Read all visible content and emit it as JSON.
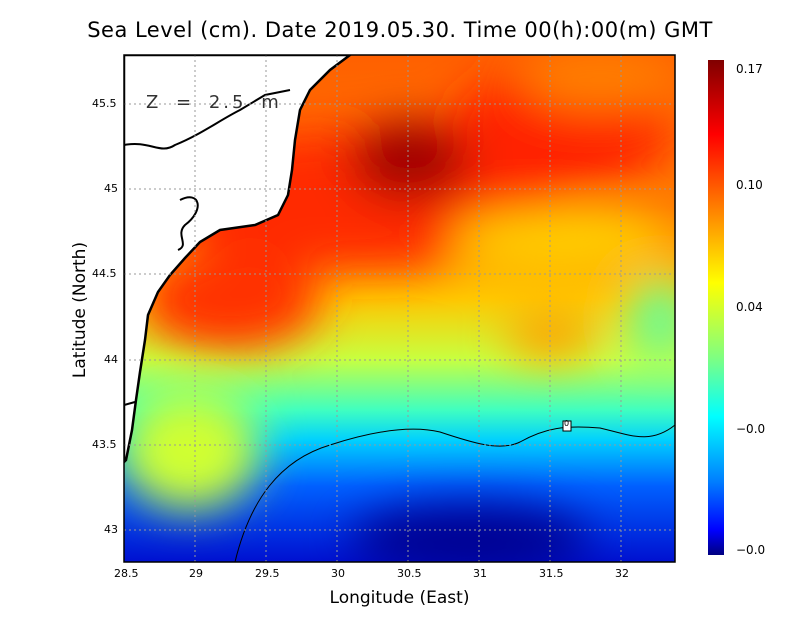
{
  "title": "Sea Level (cm). Date 2019.05.30. Time 00(h):00(m) GMT",
  "depth_label": "Z = 2.5 m",
  "xlabel": "Longitude (East)",
  "ylabel": "Latitude (North)",
  "xticks": [
    "28.5",
    "29",
    "29.5",
    "30",
    "30.5",
    "31",
    "31.5",
    "32"
  ],
  "yticks": [
    "45.5",
    "45",
    "44.5",
    "44",
    "43.5",
    "43"
  ],
  "colorbar": {
    "labels": [
      "0.17",
      "0.10",
      "0.04",
      "−0.0",
      "−0.0"
    ],
    "colors": [
      "#800000",
      "#ff0000",
      "#ff8000",
      "#ffff00",
      "#80ff80",
      "#00ffff",
      "#0080ff",
      "#0000ff",
      "#000080"
    ]
  },
  "contour_label": "0",
  "chart_data": {
    "type": "heatmap",
    "title": "Sea Level (cm). Date 2019.05.30. Time 00(h):00(m) GMT",
    "xlabel": "Longitude (East)",
    "ylabel": "Latitude (North)",
    "xlim": [
      28.5,
      32.38
    ],
    "ylim": [
      42.81,
      45.79
    ],
    "grid": true,
    "clim": [
      -0.04,
      0.17
    ]
  }
}
